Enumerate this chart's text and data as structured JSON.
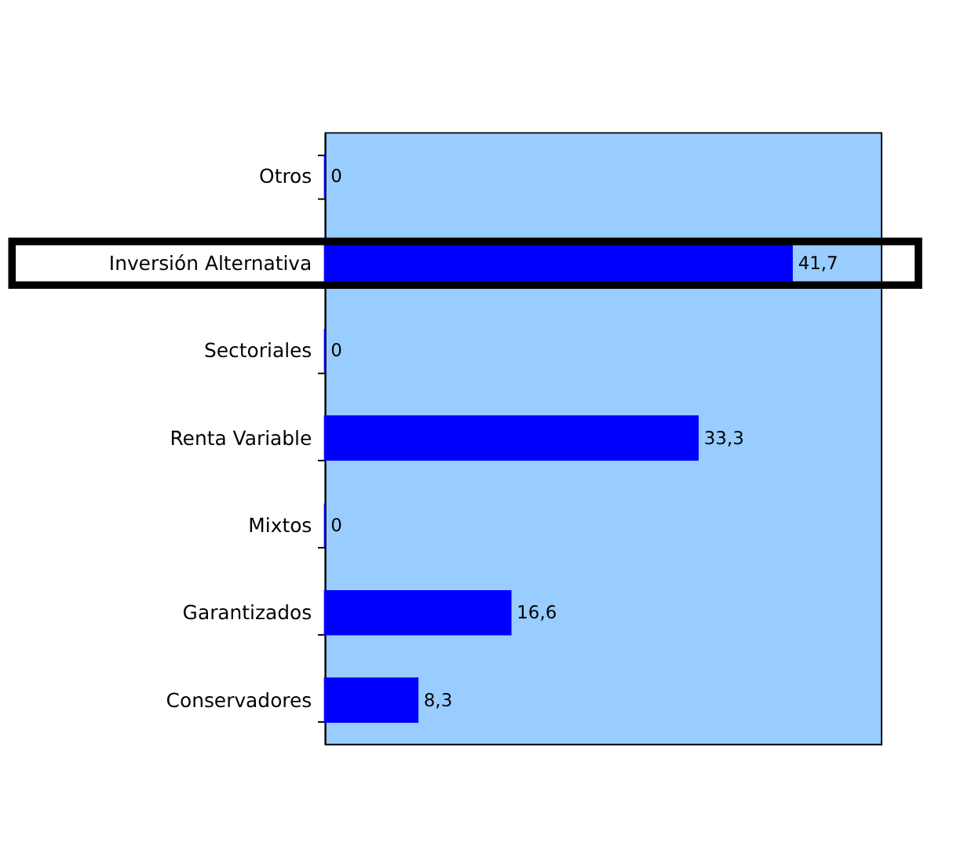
{
  "chart_data": {
    "type": "bar",
    "orientation": "horizontal",
    "categories": [
      "Otros",
      "Inversión Alternativa",
      "Sectoriales",
      "Renta Variable",
      "Mixtos",
      "Garantizados",
      "Conservadores"
    ],
    "values": [
      0,
      41.7,
      0,
      33.3,
      0,
      16.6,
      8.3
    ],
    "value_labels": [
      "0",
      "41,7",
      "0",
      "33,3",
      "0",
      "16,6",
      "8,3"
    ],
    "color": "#0000ff",
    "grid": false
  }
}
